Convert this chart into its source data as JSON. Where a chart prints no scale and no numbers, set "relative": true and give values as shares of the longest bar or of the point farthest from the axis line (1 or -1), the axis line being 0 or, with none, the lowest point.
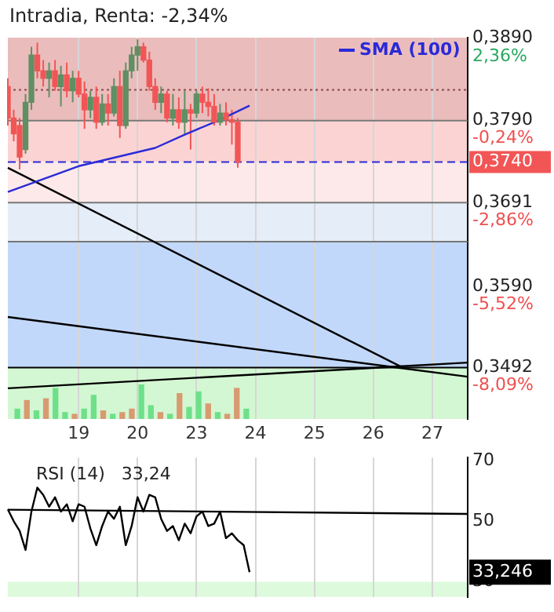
{
  "chart_data": [
    {
      "type": "candlestick",
      "title": "Intradia, Renta: -2,34%",
      "legend": "top right",
      "grid": "x",
      "categories": [
        null,
        null,
        null,
        null,
        null,
        null,
        null,
        null,
        null,
        null,
        null,
        null,
        "19",
        null,
        null,
        null,
        null,
        null,
        null,
        null,
        null,
        null,
        "20",
        null,
        null,
        null,
        null,
        null,
        null,
        null,
        null,
        null,
        "23",
        null,
        null,
        null,
        null,
        null,
        null,
        null,
        null,
        null,
        "24",
        null,
        null,
        null,
        null,
        null,
        null,
        null,
        null,
        null,
        "25",
        null,
        null,
        null,
        null,
        null,
        null,
        null,
        null,
        null,
        "26",
        null,
        null,
        null,
        null,
        null,
        null,
        null,
        null,
        null,
        "27",
        null,
        null,
        null,
        null,
        null,
        null
      ],
      "ohlc": [
        [
          0.3831,
          0.3841,
          0.3784,
          0.3793
        ],
        [
          0.3793,
          0.3803,
          0.3765,
          0.3774
        ],
        [
          0.3784,
          0.3793,
          0.3731,
          0.3746
        ],
        [
          0.3755,
          0.3822,
          0.375,
          0.3812
        ],
        [
          0.3812,
          0.3879,
          0.3803,
          0.3869
        ],
        [
          0.3869,
          0.3884,
          0.3841,
          0.385
        ],
        [
          0.385,
          0.3863,
          0.3831,
          0.3841
        ],
        [
          0.3841,
          0.386,
          0.3818,
          0.385
        ],
        [
          0.385,
          0.3863,
          0.3826,
          0.3831
        ],
        [
          0.3831,
          0.3856,
          0.3807,
          0.3845
        ],
        [
          0.3845,
          0.386,
          0.3818,
          0.3826
        ],
        [
          0.3826,
          0.385,
          0.3812,
          0.3841
        ],
        [
          0.3841,
          0.385,
          0.3818,
          0.3822
        ],
        [
          0.3822,
          0.3837,
          0.378,
          0.3803
        ],
        [
          0.3803,
          0.3826,
          0.3793,
          0.3818
        ],
        [
          0.3818,
          0.3831,
          0.378,
          0.3788
        ],
        [
          0.3788,
          0.3822,
          0.3784,
          0.381
        ],
        [
          0.381,
          0.3822,
          0.3784,
          0.3799
        ],
        [
          0.3799,
          0.3841,
          0.3795,
          0.3831
        ],
        [
          0.3831,
          0.385,
          0.3769,
          0.3784
        ],
        [
          0.3784,
          0.386,
          0.378,
          0.385
        ],
        [
          0.385,
          0.3879,
          0.3841,
          0.3869
        ],
        [
          0.3869,
          0.3888,
          0.385,
          0.3879
        ],
        [
          0.3879,
          0.3884,
          0.386,
          0.3863
        ],
        [
          0.3863,
          0.3873,
          0.3826,
          0.3831
        ],
        [
          0.3831,
          0.3841,
          0.3803,
          0.3812
        ],
        [
          0.3812,
          0.3831,
          0.3799,
          0.3822
        ],
        [
          0.3822,
          0.3826,
          0.3788,
          0.3793
        ],
        [
          0.3793,
          0.3822,
          0.3784,
          0.3803
        ],
        [
          0.3803,
          0.3818,
          0.378,
          0.3788
        ],
        [
          0.3788,
          0.3826,
          0.3774,
          0.3803
        ],
        [
          0.3803,
          0.381,
          0.3755,
          0.3799
        ],
        [
          0.3799,
          0.3826,
          0.3793,
          0.3822
        ],
        [
          0.3822,
          0.3831,
          0.3799,
          0.3812
        ],
        [
          0.3812,
          0.3829,
          0.3795,
          0.3807
        ],
        [
          0.3807,
          0.3822,
          0.3784,
          0.3788
        ],
        [
          0.3788,
          0.381,
          0.3784,
          0.3799
        ],
        [
          0.3799,
          0.3812,
          0.3784,
          0.3791
        ],
        [
          0.3791,
          0.3803,
          0.3761,
          0.3788
        ],
        [
          0.3788,
          0.3793,
          0.3733,
          0.374
        ],
        null,
        null,
        null,
        null,
        null,
        null,
        null,
        null,
        null,
        null,
        null,
        null,
        null,
        null,
        null,
        null,
        null,
        null,
        null,
        null,
        null,
        null,
        null,
        null,
        null,
        null,
        null,
        null,
        null,
        null,
        null,
        null,
        null,
        null,
        null,
        null,
        null,
        null,
        null
      ],
      "series": [
        {
          "name": "SMA (100)",
          "type": "line",
          "color": "#2a2ad8",
          "values": [
            0.3704,
            null,
            null,
            null,
            null,
            null,
            null,
            null,
            null,
            null,
            null,
            null,
            0.3735,
            null,
            null,
            null,
            null,
            null,
            null,
            null,
            null,
            null,
            null,
            null,
            null,
            0.3757,
            null,
            null,
            null,
            null,
            0.3773,
            null,
            null,
            null,
            null,
            null,
            0.3791,
            null,
            null,
            null,
            null,
            0.3808,
            null,
            null,
            null,
            null,
            null,
            null,
            null,
            null,
            null,
            null,
            null,
            null,
            null,
            null,
            null,
            null,
            null,
            null,
            null,
            null,
            null,
            null,
            null,
            null,
            null,
            null,
            null,
            null,
            null,
            null,
            null,
            null,
            null,
            null,
            null,
            null,
            null
          ]
        },
        {
          "type": "line",
          "color": "#000000",
          "values": [
            0.3733,
            null,
            null,
            null,
            null,
            null,
            null,
            null,
            null,
            null,
            null,
            null,
            null,
            null,
            null,
            null,
            null,
            null,
            null,
            null,
            null,
            null,
            null,
            null,
            null,
            null,
            null,
            null,
            null,
            null,
            null,
            null,
            null,
            null,
            null,
            null,
            null,
            null,
            null,
            null,
            null,
            null,
            null,
            null,
            null,
            null,
            null,
            null,
            null,
            null,
            null,
            null,
            null,
            null,
            null,
            null,
            null,
            null,
            null,
            null,
            null,
            null,
            null,
            null,
            null,
            null,
            null,
            0.3492,
            null,
            null,
            null,
            null,
            null,
            null,
            null,
            null,
            null,
            null,
            null
          ]
        },
        {
          "type": "line",
          "color": "#000000",
          "values": [
            0.3553,
            null,
            null,
            null,
            null,
            null,
            null,
            null,
            null,
            null,
            null,
            null,
            null,
            null,
            null,
            null,
            null,
            null,
            null,
            null,
            null,
            null,
            null,
            null,
            null,
            null,
            null,
            null,
            null,
            null,
            null,
            null,
            null,
            null,
            null,
            null,
            null,
            null,
            null,
            null,
            null,
            null,
            null,
            null,
            null,
            null,
            null,
            null,
            null,
            null,
            null,
            null,
            null,
            null,
            null,
            null,
            null,
            null,
            null,
            null,
            null,
            null,
            null,
            null,
            null,
            null,
            null,
            null,
            null,
            null,
            null,
            null,
            null,
            null,
            null,
            null,
            null,
            null,
            0.3481
          ]
        },
        {
          "type": "line",
          "color": "#000000",
          "values": [
            0.3467,
            null,
            null,
            null,
            null,
            null,
            null,
            null,
            null,
            null,
            null,
            null,
            null,
            null,
            null,
            null,
            null,
            null,
            null,
            null,
            null,
            null,
            null,
            null,
            null,
            null,
            null,
            null,
            null,
            null,
            null,
            null,
            null,
            null,
            null,
            null,
            null,
            null,
            null,
            null,
            null,
            null,
            null,
            null,
            null,
            null,
            null,
            null,
            null,
            null,
            null,
            null,
            null,
            null,
            null,
            null,
            null,
            null,
            null,
            null,
            null,
            null,
            null,
            null,
            null,
            null,
            null,
            null,
            null,
            null,
            null,
            null,
            null,
            null,
            null,
            null,
            null,
            null,
            0.3498
          ]
        }
      ],
      "ylim": [
        0.343,
        0.389
      ],
      "yticks": [
        {
          "value": 0.389,
          "label": "0,3890"
        },
        {
          "value": 0.379,
          "label": "0,3790"
        },
        {
          "value": 0.3691,
          "label": "0,3691"
        },
        {
          "value": 0.359,
          "label": "0,3590"
        },
        {
          "value": 0.3492,
          "label": "0,3492"
        }
      ],
      "y2lim": [
        -9.74,
        2.36
      ],
      "y2ticks": [
        {
          "value": 2.36,
          "label": "2,36%"
        },
        {
          "value": -0.24,
          "label": "-0,24%"
        },
        {
          "value": -2.86,
          "label": "-2,86%"
        },
        {
          "value": -5.52,
          "label": "-5,52%"
        },
        {
          "value": -8.09,
          "label": "-8,09%"
        }
      ],
      "bands": [
        {
          "axis": "y",
          "from": 0.379,
          "to": 0.389,
          "color": "#ebbcbc"
        },
        {
          "axis": "y",
          "from": 0.374,
          "to": 0.379,
          "color": "#fcd3d3"
        },
        {
          "axis": "y",
          "from": 0.3691,
          "to": 0.374,
          "color": "#fde9e9"
        },
        {
          "axis": "y",
          "from": 0.3644,
          "to": 0.3691,
          "color": "#e4edf8"
        },
        {
          "axis": "y",
          "from": 0.3492,
          "to": 0.3644,
          "color": "#c2d8fa"
        },
        {
          "axis": "y",
          "from": 0.343,
          "to": 0.3492,
          "color": "#d3f7d3"
        }
      ],
      "ref_lines": [
        {
          "axis": "y",
          "value": 0.3827,
          "color": "#8a4a4a",
          "line_style": "dotted"
        },
        {
          "axis": "y",
          "value": 0.379,
          "color": "#777777",
          "line_style": "solid"
        },
        {
          "axis": "y",
          "value": 0.374,
          "label": "0,3740",
          "color": "#2a2ad8",
          "line_style": "dashed"
        },
        {
          "axis": "y",
          "value": 0.3691,
          "color": "#777777",
          "line_style": "solid"
        },
        {
          "axis": "y",
          "value": 0.3644,
          "color": "#777777",
          "line_style": "solid"
        },
        {
          "axis": "y",
          "value": 0.3492,
          "color": "#000000",
          "line_style": "solid"
        }
      ]
    },
    {
      "type": "bar",
      "relative": true,
      "categories": [
        null,
        null,
        null,
        null,
        null,
        null,
        null,
        null,
        null,
        null,
        null,
        null,
        null,
        null,
        null,
        null,
        null,
        null,
        null,
        null,
        null,
        null,
        null,
        null,
        null
      ],
      "values": [
        0.3,
        0.55,
        0.25,
        0.6,
        0.9,
        0.2,
        0.15,
        0.3,
        0.7,
        0.25,
        0.15,
        0.2,
        0.3,
        1.0,
        0.4,
        0.2,
        0.15,
        0.75,
        0.35,
        0.8,
        0.45,
        0.2,
        0.15,
        0.9,
        0.3
      ],
      "colors": [
        "#6ee08a",
        "#d99a70",
        "#6ee08a",
        "#d99a70",
        "#6ee08a",
        "#6ee08a",
        "#d99a70",
        "#6ee08a",
        "#6ee08a",
        "#d99a70",
        "#6ee08a",
        "#d99a70",
        "#d99a70",
        "#6ee08a",
        "#6ee08a",
        "#d99a70",
        "#6ee08a",
        "#d99a70",
        "#6ee08a",
        "#6ee08a",
        "#d99a70",
        "#6ee08a",
        "#d99a70",
        "#d99a70",
        "#6ee08a"
      ]
    },
    {
      "type": "line",
      "title": "RSI (14)   33,24",
      "grid": "x",
      "tick_labels": "y",
      "categories": [
        null,
        null,
        null,
        null,
        null,
        null,
        null,
        null,
        null,
        null,
        null,
        null,
        "19",
        null,
        null,
        null,
        null,
        null,
        null,
        null,
        null,
        null,
        "20",
        null,
        null,
        null,
        null,
        null,
        null,
        null,
        null,
        null,
        "23",
        null,
        null,
        null,
        null,
        null,
        null,
        null,
        null,
        null,
        "24",
        null,
        null,
        null,
        null,
        null,
        null,
        null,
        null,
        null,
        "25",
        null,
        null,
        null,
        null,
        null,
        null,
        null,
        null,
        null,
        "26",
        null,
        null,
        null,
        null,
        null,
        null,
        null,
        null,
        null,
        "27",
        null,
        null,
        null,
        null,
        null,
        null
      ],
      "series": [
        {
          "color": "#000000",
          "values": [
            53.9,
            50,
            46.8,
            40.5,
            53.2,
            61.1,
            58.7,
            54.8,
            57.9,
            53.2,
            55.6,
            50,
            55.6,
            54.8,
            47.6,
            42.1,
            48.4,
            53.2,
            50.8,
            54.8,
            42.1,
            48.4,
            57.9,
            53.2,
            58.7,
            57.9,
            50.8,
            46.8,
            48.4,
            43.7,
            49.2,
            46,
            51.6,
            53.2,
            48.4,
            49.2,
            53.2,
            44.4,
            46,
            43.7,
            42.1,
            33.2,
            null,
            null,
            null,
            null,
            null,
            null,
            null,
            null,
            null,
            null,
            null,
            null,
            null,
            null,
            null,
            null,
            null,
            null,
            null,
            null,
            null,
            null,
            null,
            null,
            null,
            null,
            null,
            null,
            null,
            null,
            null,
            null,
            null,
            null,
            null,
            null,
            null
          ]
        },
        {
          "color": "#000000",
          "values": [
            53.8,
            null,
            null,
            null,
            null,
            null,
            null,
            null,
            null,
            null,
            null,
            null,
            null,
            null,
            null,
            null,
            null,
            null,
            null,
            null,
            null,
            null,
            null,
            null,
            null,
            null,
            null,
            null,
            null,
            null,
            null,
            null,
            null,
            null,
            null,
            null,
            null,
            null,
            null,
            null,
            null,
            null,
            null,
            null,
            null,
            null,
            null,
            null,
            null,
            null,
            null,
            null,
            null,
            null,
            null,
            null,
            null,
            null,
            null,
            null,
            null,
            null,
            null,
            null,
            null,
            null,
            null,
            null,
            null,
            null,
            null,
            null,
            null,
            null,
            null,
            null,
            null,
            null,
            52.4
          ]
        }
      ],
      "ylim": [
        25,
        71
      ],
      "yticks": [
        30,
        50,
        70
      ],
      "bands": [
        {
          "axis": "y",
          "from": 25,
          "to": 30,
          "color": "#ddfadd"
        }
      ],
      "annotations": [
        "33,246"
      ]
    }
  ]
}
